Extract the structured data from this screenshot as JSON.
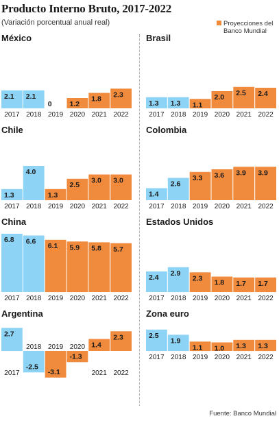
{
  "header": {
    "title": "Producto Interno Bruto, 2017-2022",
    "subtitle": "(Variación porcentual anual real)",
    "legend_label": "Proyecciones del Banco Mundial"
  },
  "footer": {
    "source": "Fuente: Banco Mundial"
  },
  "colors": {
    "actual": "#8dd3f6",
    "projection": "#f08a3c",
    "text": "#1a1a1a"
  },
  "chart_data": [
    {
      "type": "bar",
      "title": "México",
      "categories": [
        "2017",
        "2018",
        "2019",
        "2020",
        "2021",
        "2022"
      ],
      "values": [
        2.1,
        2.1,
        0,
        1.2,
        1.8,
        2.3
      ],
      "labels": [
        "2.1",
        "2.1",
        "0",
        "1.2",
        "1.8",
        "2.3"
      ],
      "projection_from_index": 3
    },
    {
      "type": "bar",
      "title": "Brasil",
      "categories": [
        "2017",
        "2018",
        "2019",
        "2020",
        "2021",
        "2022"
      ],
      "values": [
        1.3,
        1.3,
        1.1,
        2.0,
        2.5,
        2.4
      ],
      "labels": [
        "1.3",
        "1.3",
        "1.1",
        "2.0",
        "2.5",
        "2.4"
      ],
      "projection_from_index": 2
    },
    {
      "type": "bar",
      "title": "Chile",
      "categories": [
        "2017",
        "2018",
        "2019",
        "2020",
        "2021",
        "2022"
      ],
      "values": [
        1.3,
        4.0,
        1.3,
        2.5,
        3.0,
        3.0
      ],
      "labels": [
        "1.3",
        "4.0",
        "1.3",
        "2.5",
        "3.0",
        "3.0"
      ],
      "projection_from_index": 2
    },
    {
      "type": "bar",
      "title": "Colombia",
      "categories": [
        "2017",
        "2018",
        "2019",
        "2020",
        "2021",
        "2022"
      ],
      "values": [
        1.4,
        2.6,
        3.3,
        3.6,
        3.9,
        3.9
      ],
      "labels": [
        "1.4",
        "2.6",
        "3.3",
        "3.6",
        "3.9",
        "3.9"
      ],
      "projection_from_index": 2
    },
    {
      "type": "bar",
      "title": "China",
      "categories": [
        "2017",
        "2018",
        "2019",
        "2020",
        "2021",
        "2022"
      ],
      "values": [
        6.8,
        6.6,
        6.1,
        5.9,
        5.8,
        5.7
      ],
      "labels": [
        "6.8",
        "6.6",
        "6.1",
        "5.9",
        "5.8",
        "5.7"
      ],
      "projection_from_index": 2
    },
    {
      "type": "bar",
      "title": "Estados Unidos",
      "categories": [
        "2017",
        "2018",
        "2019",
        "2020",
        "2021",
        "2022"
      ],
      "values": [
        2.4,
        2.9,
        2.3,
        1.8,
        1.7,
        1.7
      ],
      "labels": [
        "2.4",
        "2.9",
        "2.3",
        "1.8",
        "1.7",
        "1.7"
      ],
      "projection_from_index": 2
    },
    {
      "type": "bar",
      "title": "Argentina",
      "categories": [
        "2017",
        "2018",
        "2019",
        "2020",
        "2021",
        "2022"
      ],
      "values": [
        2.7,
        -2.5,
        -3.1,
        -1.3,
        1.4,
        2.3
      ],
      "labels": [
        "2.7",
        "-2.5",
        "-3.1",
        "-1.3",
        "1.4",
        "2.3"
      ],
      "projection_from_index": 2
    },
    {
      "type": "bar",
      "title": "Zona euro",
      "categories": [
        "2017",
        "2018",
        "2019",
        "2020",
        "2021",
        "2022"
      ],
      "values": [
        2.5,
        1.9,
        1.1,
        1.0,
        1.3,
        1.3
      ],
      "labels": [
        "2.5",
        "1.9",
        "1.1",
        "1.0",
        "1.3",
        "1.3"
      ],
      "projection_from_index": 2
    }
  ]
}
